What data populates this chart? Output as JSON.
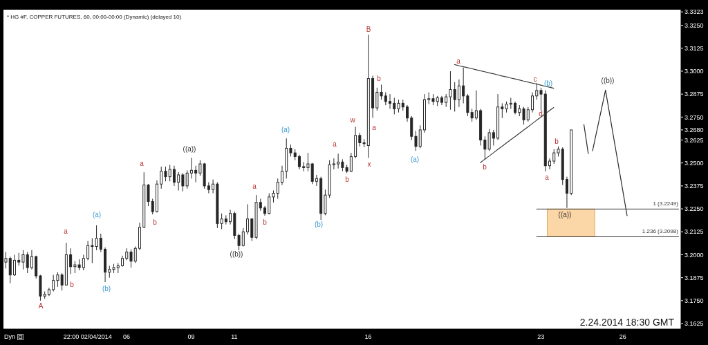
{
  "chart_data": {
    "type": "candlestick",
    "title": "* HG #F, COPPER FUTURES, 60, 00:00-00:00 (Dynamic) (delayed 10)",
    "color": "#262626",
    "categories": [
      null,
      null,
      null,
      null,
      null,
      null,
      null,
      null,
      null,
      null,
      null,
      null,
      null,
      null,
      null,
      null,
      null,
      null,
      null,
      "22:00 02/04/2014",
      null,
      null,
      null,
      null,
      null,
      null,
      null,
      null,
      "06",
      null,
      null,
      null,
      null,
      null,
      null,
      null,
      null,
      null,
      null,
      null,
      null,
      null,
      null,
      "09",
      null,
      null,
      null,
      null,
      null,
      null,
      null,
      null,
      null,
      "11",
      null,
      null,
      null,
      null,
      null,
      null,
      null,
      null,
      null,
      null,
      null,
      null,
      null,
      null,
      null,
      null,
      null,
      null,
      null,
      null,
      null,
      null,
      null,
      null,
      null,
      null,
      null,
      null,
      null,
      null,
      "16",
      null,
      null,
      null,
      null,
      null,
      null,
      null,
      null,
      null,
      null,
      null,
      null,
      null,
      null,
      null,
      null,
      null,
      null,
      null,
      null,
      null,
      null,
      null,
      null,
      null,
      null,
      null,
      null,
      null,
      null,
      null,
      null,
      null,
      null,
      null,
      null,
      null,
      null,
      null,
      "23",
      null,
      null,
      null,
      null,
      null,
      null,
      null,
      null,
      null,
      null,
      null,
      null,
      null,
      null,
      null,
      null,
      null,
      null,
      "26",
      null,
      null,
      null,
      null,
      null,
      null,
      null,
      null,
      null,
      null,
      null,
      null,
      null
    ],
    "ohlc": [
      [
        3.196,
        3.2015,
        3.1925,
        3.198
      ],
      [
        3.198,
        3.199,
        3.1845,
        3.189
      ],
      [
        3.189,
        3.2,
        3.1885,
        3.197
      ],
      [
        3.197,
        3.201,
        3.194,
        3.196
      ],
      [
        3.196,
        3.2025,
        3.192,
        3.2
      ],
      [
        3.2,
        3.2015,
        3.19,
        3.193
      ],
      [
        3.193,
        3.2025,
        3.192,
        3.199
      ],
      [
        3.199,
        3.1995,
        3.187,
        3.1885
      ],
      [
        3.1885,
        3.189,
        3.175,
        3.1775
      ],
      [
        3.1775,
        3.18,
        3.176,
        3.1785
      ],
      [
        3.1785,
        3.182,
        3.1775,
        3.181
      ],
      [
        3.181,
        3.189,
        3.18,
        3.186
      ],
      [
        3.186,
        3.1905,
        3.1825,
        3.189
      ],
      [
        3.189,
        3.19,
        3.1805,
        3.1835
      ],
      [
        3.1835,
        3.2065,
        3.1835,
        3.2
      ],
      [
        3.2,
        3.2035,
        3.1895,
        3.1935
      ],
      [
        3.1935,
        3.1965,
        3.19,
        3.1945
      ],
      [
        3.1945,
        3.1975,
        3.1915,
        3.193
      ],
      [
        3.193,
        3.2,
        3.1915,
        3.198
      ],
      [
        3.198,
        3.2075,
        3.197,
        3.205
      ],
      [
        3.205,
        3.209,
        3.1955,
        3.2045
      ],
      [
        3.2045,
        3.216,
        3.2025,
        3.209
      ],
      [
        3.209,
        3.2115,
        3.2015,
        3.203
      ],
      [
        3.203,
        3.204,
        3.1851,
        3.1905
      ],
      [
        3.1905,
        3.194,
        3.1875,
        3.192
      ],
      [
        3.192,
        3.195,
        3.19,
        3.193
      ],
      [
        3.193,
        3.1955,
        3.19,
        3.194
      ],
      [
        3.194,
        3.1995,
        3.1935,
        3.198
      ],
      [
        3.198,
        3.2035,
        3.197,
        3.2015
      ],
      [
        3.2015,
        3.203,
        3.193,
        3.1965
      ],
      [
        3.1965,
        3.2045,
        3.1955,
        3.2035
      ],
      [
        3.2035,
        3.2175,
        3.2025,
        3.215
      ],
      [
        3.215,
        3.2449,
        3.2145,
        3.238
      ],
      [
        3.238,
        3.2385,
        3.2265,
        3.229
      ],
      [
        3.229,
        3.2305,
        3.222,
        3.2235
      ],
      [
        3.2235,
        3.2405,
        3.223,
        3.2385
      ],
      [
        3.2385,
        3.248,
        3.236,
        3.2455
      ],
      [
        3.2455,
        3.248,
        3.24,
        3.2425
      ],
      [
        3.2425,
        3.249,
        3.24,
        3.2465
      ],
      [
        3.2465,
        3.2485,
        3.2375,
        3.2395
      ],
      [
        3.2395,
        3.245,
        3.235,
        3.2435
      ],
      [
        3.2435,
        3.2445,
        3.2345,
        3.2375
      ],
      [
        3.2375,
        3.246,
        3.236,
        3.2445
      ],
      [
        3.2445,
        3.2528,
        3.2415,
        3.246
      ],
      [
        3.246,
        3.2485,
        3.2395,
        3.2445
      ],
      [
        3.2445,
        3.2515,
        3.243,
        3.2495
      ],
      [
        3.2495,
        3.25,
        3.236,
        3.2375
      ],
      [
        3.2375,
        3.2395,
        3.2335,
        3.2355
      ],
      [
        3.2355,
        3.241,
        3.2335,
        3.2385
      ],
      [
        3.2385,
        3.2395,
        3.2145,
        3.217
      ],
      [
        3.217,
        3.2225,
        3.214,
        3.2195
      ],
      [
        3.2195,
        3.2215,
        3.2165,
        3.218
      ],
      [
        3.218,
        3.2245,
        3.2165,
        3.2225
      ],
      [
        3.2225,
        3.2235,
        3.2085,
        3.2105
      ],
      [
        3.2105,
        3.2115,
        3.2024,
        3.205
      ],
      [
        3.205,
        3.2145,
        3.2045,
        3.2125
      ],
      [
        3.2125,
        3.2275,
        3.211,
        3.2195
      ],
      [
        3.2195,
        3.22,
        3.2075,
        3.2095
      ],
      [
        3.2095,
        3.2325,
        3.2085,
        3.2285
      ],
      [
        3.2285,
        3.2305,
        3.224,
        3.2255
      ],
      [
        3.2255,
        3.2265,
        3.2213,
        3.2225
      ],
      [
        3.2225,
        3.2335,
        3.222,
        3.2315
      ],
      [
        3.2315,
        3.235,
        3.2285,
        3.2335
      ],
      [
        3.2335,
        3.2415,
        3.2305,
        3.2395
      ],
      [
        3.2395,
        3.2485,
        3.238,
        3.2455
      ],
      [
        3.2455,
        3.2634,
        3.2415,
        3.258
      ],
      [
        3.258,
        3.26,
        3.2535,
        3.2555
      ],
      [
        3.2555,
        3.2575,
        3.2515,
        3.2535
      ],
      [
        3.2535,
        3.2545,
        3.2465,
        3.248
      ],
      [
        3.248,
        3.2505,
        3.2455,
        3.2475
      ],
      [
        3.2475,
        3.2555,
        3.2455,
        3.2495
      ],
      [
        3.2495,
        3.25,
        3.2385,
        3.24
      ],
      [
        3.24,
        3.2435,
        3.2375,
        3.2415
      ],
      [
        3.2415,
        3.2425,
        3.219,
        3.2225
      ],
      [
        3.2225,
        3.2355,
        3.2215,
        3.2325
      ],
      [
        3.2325,
        3.2515,
        3.231,
        3.249
      ],
      [
        3.249,
        3.2525,
        3.2465,
        3.2495
      ],
      [
        3.2495,
        3.255,
        3.247,
        3.2505
      ],
      [
        3.2505,
        3.252,
        3.2455,
        3.2475
      ],
      [
        3.2475,
        3.249,
        3.2445,
        3.2455
      ],
      [
        3.2455,
        3.2555,
        3.245,
        3.2535
      ],
      [
        3.2535,
        3.2698,
        3.2525,
        3.265
      ],
      [
        3.265,
        3.2665,
        3.259,
        3.261
      ],
      [
        3.261,
        3.263,
        3.2585,
        3.2605
      ],
      [
        3.2595,
        3.3198,
        3.2528,
        3.296
      ],
      [
        3.296,
        3.2975,
        3.2746,
        3.28
      ],
      [
        3.28,
        3.291,
        3.2785,
        3.2885
      ],
      [
        3.2885,
        3.2927,
        3.2845,
        3.2865
      ],
      [
        3.2865,
        3.2885,
        3.2815,
        3.2835
      ],
      [
        3.2835,
        3.2875,
        3.2795,
        3.2825
      ],
      [
        3.2825,
        3.2855,
        3.2765,
        3.2795
      ],
      [
        3.2795,
        3.2845,
        3.2775,
        3.2825
      ],
      [
        3.2825,
        3.2845,
        3.2785,
        3.2805
      ],
      [
        3.2805,
        3.2815,
        3.2725,
        3.2745
      ],
      [
        3.2745,
        3.2755,
        3.2625,
        3.2645
      ],
      [
        3.2645,
        3.2675,
        3.2566,
        3.259
      ],
      [
        3.259,
        3.2705,
        3.258,
        3.268
      ],
      [
        3.268,
        3.2875,
        3.2665,
        3.2845
      ],
      [
        3.2845,
        3.2885,
        3.282,
        3.285
      ],
      [
        3.285,
        3.2875,
        3.2815,
        3.2835
      ],
      [
        3.2835,
        3.2865,
        3.281,
        3.2855
      ],
      [
        3.2855,
        3.2865,
        3.2815,
        3.283
      ],
      [
        3.283,
        3.2875,
        3.2805,
        3.286
      ],
      [
        3.286,
        3.3,
        3.279,
        3.29
      ],
      [
        3.29,
        3.294,
        3.278,
        3.2845
      ],
      [
        3.2845,
        3.2955,
        3.2805,
        3.292
      ],
      [
        3.292,
        3.302,
        3.2825,
        3.2865
      ],
      [
        3.2865,
        3.2875,
        3.2755,
        3.2775
      ],
      [
        3.2775,
        3.2795,
        3.2725,
        3.2745
      ],
      [
        3.2745,
        3.2895,
        3.2735,
        3.2785
      ],
      [
        3.2785,
        3.2795,
        3.2595,
        3.2625
      ],
      [
        3.2625,
        3.2645,
        3.252,
        3.2575
      ],
      [
        3.2575,
        3.2685,
        3.2565,
        3.2665
      ],
      [
        3.2665,
        3.268,
        3.2595,
        3.2635
      ],
      [
        3.2635,
        3.2875,
        3.2625,
        3.2805
      ],
      [
        3.2805,
        3.2825,
        3.2745,
        3.2795
      ],
      [
        3.2795,
        3.2835,
        3.2775,
        3.282
      ],
      [
        3.282,
        3.2855,
        3.2795,
        3.2825
      ],
      [
        3.2825,
        3.2835,
        3.2765,
        3.2775
      ],
      [
        3.2775,
        3.2815,
        3.2755,
        3.2795
      ],
      [
        3.2795,
        3.2805,
        3.2709,
        3.2735
      ],
      [
        3.2735,
        3.2805,
        3.2725,
        3.279
      ],
      [
        3.279,
        3.2885,
        3.2775,
        3.2865
      ],
      [
        3.2865,
        3.2935,
        3.2845,
        3.2895
      ],
      [
        3.2895,
        3.291,
        3.2784,
        3.2875
      ],
      [
        3.2875,
        3.2895,
        3.2454,
        3.2485
      ],
      [
        3.2485,
        3.2525,
        3.2465,
        3.251
      ],
      [
        3.251,
        3.2575,
        3.2495,
        3.2555
      ],
      [
        3.2555,
        3.259,
        3.2535,
        3.2575
      ],
      [
        3.2575,
        3.2585,
        3.238,
        3.241
      ],
      [
        3.241,
        3.2425,
        3.2255,
        3.2335
      ],
      [
        3.2335,
        3.268,
        3.2325,
        3.268
      ],
      null,
      null,
      null,
      null,
      null,
      null,
      null,
      null,
      null,
      null,
      null,
      null,
      null,
      null,
      null,
      null,
      null,
      null,
      null,
      null,
      null,
      null,
      null,
      null,
      null
    ],
    "series": [
      {
        "type": "line",
        "color": "#3a3a3a",
        "values": [
          null,
          null,
          null,
          null,
          null,
          null,
          null,
          null,
          null,
          null,
          null,
          null,
          null,
          null,
          null,
          null,
          null,
          null,
          null,
          null,
          null,
          null,
          null,
          null,
          null,
          null,
          null,
          null,
          null,
          null,
          null,
          null,
          null,
          null,
          null,
          null,
          null,
          null,
          null,
          null,
          null,
          null,
          null,
          null,
          null,
          null,
          null,
          null,
          null,
          null,
          null,
          null,
          null,
          null,
          null,
          null,
          null,
          null,
          null,
          null,
          null,
          null,
          null,
          null,
          null,
          null,
          null,
          null,
          null,
          null,
          null,
          null,
          null,
          null,
          null,
          null,
          null,
          null,
          null,
          null,
          null,
          null,
          null,
          null,
          null,
          null,
          null,
          null,
          null,
          null,
          null,
          null,
          null,
          null,
          null,
          null,
          null,
          null,
          null,
          null,
          null,
          null,
          null,
          null,
          3.3036,
          3.303,
          3.3025,
          3.3019,
          3.3014,
          3.3008,
          3.3002,
          3.2997,
          3.2991,
          3.2986,
          3.298,
          3.2974,
          3.2969,
          3.2963,
          3.2958,
          3.2952,
          3.2946,
          3.2941,
          3.2935,
          3.293,
          3.2924,
          3.2918,
          3.2913,
          3.2907,
          null,
          null,
          null,
          null,
          null,
          null,
          null,
          null,
          null,
          null,
          null,
          null,
          null,
          null,
          null,
          null,
          null,
          null,
          null,
          null,
          null,
          null,
          null,
          null,
          null,
          null,
          null,
          null,
          null
        ]
      },
      {
        "type": "line",
        "color": "#3a3a3a",
        "values": [
          null,
          null,
          null,
          null,
          null,
          null,
          null,
          null,
          null,
          null,
          null,
          null,
          null,
          null,
          null,
          null,
          null,
          null,
          null,
          null,
          null,
          null,
          null,
          null,
          null,
          null,
          null,
          null,
          null,
          null,
          null,
          null,
          null,
          null,
          null,
          null,
          null,
          null,
          null,
          null,
          null,
          null,
          null,
          null,
          null,
          null,
          null,
          null,
          null,
          null,
          null,
          null,
          null,
          null,
          null,
          null,
          null,
          null,
          null,
          null,
          null,
          null,
          null,
          null,
          null,
          null,
          null,
          null,
          null,
          null,
          null,
          null,
          null,
          null,
          null,
          null,
          null,
          null,
          null,
          null,
          null,
          null,
          null,
          null,
          null,
          null,
          null,
          null,
          null,
          null,
          null,
          null,
          null,
          null,
          null,
          null,
          null,
          null,
          null,
          null,
          null,
          null,
          null,
          null,
          null,
          null,
          null,
          null,
          null,
          null,
          3.2502,
          3.252,
          3.2537,
          3.2555,
          3.2573,
          3.259,
          3.2608,
          3.2626,
          3.2643,
          3.2661,
          3.2679,
          3.2696,
          3.2714,
          3.2732,
          3.2749,
          3.2767,
          3.2785,
          3.2802,
          null,
          null,
          null,
          null,
          null,
          null,
          null,
          null,
          null,
          null,
          null,
          null,
          null,
          null,
          null,
          null,
          null,
          null,
          null,
          null,
          null,
          null,
          null,
          null,
          null,
          null,
          null,
          null,
          null
        ]
      },
      {
        "type": "line",
        "color": "#2a2a2a",
        "values": [
          null,
          null,
          null,
          null,
          null,
          null,
          null,
          null,
          null,
          null,
          null,
          null,
          null,
          null,
          null,
          null,
          null,
          null,
          null,
          null,
          null,
          null,
          null,
          null,
          null,
          null,
          null,
          null,
          null,
          null,
          null,
          null,
          null,
          null,
          null,
          null,
          null,
          null,
          null,
          null,
          null,
          null,
          null,
          null,
          null,
          null,
          null,
          null,
          null,
          null,
          null,
          null,
          null,
          null,
          null,
          null,
          null,
          null,
          null,
          null,
          null,
          null,
          null,
          null,
          null,
          null,
          null,
          null,
          null,
          null,
          null,
          null,
          null,
          null,
          null,
          null,
          null,
          null,
          null,
          null,
          null,
          null,
          null,
          null,
          null,
          null,
          null,
          null,
          null,
          null,
          null,
          null,
          null,
          null,
          null,
          null,
          null,
          null,
          null,
          null,
          null,
          null,
          null,
          null,
          null,
          null,
          null,
          null,
          null,
          null,
          null,
          null,
          null,
          null,
          null,
          null,
          null,
          null,
          null,
          null,
          null,
          null,
          null,
          null,
          null,
          null,
          null,
          null,
          null,
          null,
          null,
          null,
          null,
          null,
          3.2709,
          3.2551,
          null,
          null,
          null,
          null,
          null,
          null,
          null,
          null,
          null,
          null,
          null,
          null,
          null,
          null,
          null,
          null,
          null,
          null,
          null,
          null,
          null
        ]
      },
      {
        "type": "line",
        "color": "#2a2a2a",
        "values": [
          null,
          null,
          null,
          null,
          null,
          null,
          null,
          null,
          null,
          null,
          null,
          null,
          null,
          null,
          null,
          null,
          null,
          null,
          null,
          null,
          null,
          null,
          null,
          null,
          null,
          null,
          null,
          null,
          null,
          null,
          null,
          null,
          null,
          null,
          null,
          null,
          null,
          null,
          null,
          null,
          null,
          null,
          null,
          null,
          null,
          null,
          null,
          null,
          null,
          null,
          null,
          null,
          null,
          null,
          null,
          null,
          null,
          null,
          null,
          null,
          null,
          null,
          null,
          null,
          null,
          null,
          null,
          null,
          null,
          null,
          null,
          null,
          null,
          null,
          null,
          null,
          null,
          null,
          null,
          null,
          null,
          null,
          null,
          null,
          null,
          null,
          null,
          null,
          null,
          null,
          null,
          null,
          null,
          null,
          null,
          null,
          null,
          null,
          null,
          null,
          null,
          null,
          null,
          null,
          null,
          null,
          null,
          null,
          null,
          null,
          null,
          null,
          null,
          null,
          null,
          null,
          null,
          null,
          null,
          null,
          null,
          null,
          null,
          null,
          null,
          null,
          null,
          null,
          null,
          null,
          null,
          null,
          null,
          null,
          null,
          null,
          3.2566,
          3.2676,
          3.2787,
          3.2897,
          3.276,
          3.2623,
          3.2487,
          3.235,
          3.2213,
          null,
          null,
          null,
          null,
          null,
          null,
          null,
          null,
          null,
          null,
          null,
          null
        ]
      }
    ],
    "ylim": [
      3.1595,
      3.3335
    ],
    "yticks": [
      {
        "value": 3.1625,
        "label": "3.1625"
      },
      {
        "value": 3.175,
        "label": "3.1750"
      },
      {
        "value": 3.1875,
        "label": "3.1875"
      },
      {
        "value": 3.2,
        "label": "3.2000"
      },
      {
        "value": 3.2125,
        "label": "3.2125"
      },
      {
        "value": 3.225,
        "label": "3.2250"
      },
      {
        "value": 3.2375,
        "label": "3.2375"
      },
      {
        "value": 3.25,
        "label": "3.2500"
      },
      {
        "value": 3.2625,
        "label": "3.2625"
      },
      {
        "value": 3.268,
        "label": "3.2680"
      },
      {
        "value": 3.275,
        "label": "3.2750"
      },
      {
        "value": 3.2875,
        "label": "3.2875"
      },
      {
        "value": 3.3,
        "label": "3.3000"
      },
      {
        "value": 3.3125,
        "label": "3.3125"
      },
      {
        "value": 3.325,
        "label": "3.3250"
      },
      {
        "value": 3.3323,
        "label": "3.3323"
      }
    ],
    "ref_lines": [
      {
        "axis": "y",
        "value": 3.2249,
        "label": "1 (3.2249)",
        "color": "#333333"
      },
      {
        "axis": "y",
        "value": 3.2098,
        "label": "1.236 (3.2098)",
        "color": "#333333"
      }
    ],
    "bands": [
      {
        "axis": "y",
        "from": 3.2098,
        "to": 3.2249,
        "color": "#fbd6a6"
      }
    ],
    "annotations": [
      "2.24.2014 18:30 GMT",
      "Dyn",
      "A",
      "a",
      "b",
      "(a)",
      "(b)",
      "a",
      "b",
      "((a))",
      "((b))",
      "a",
      "b",
      "(a)",
      "(b)",
      "a",
      "b",
      "w",
      "x",
      "B",
      "a",
      "b",
      "(a)",
      "a",
      "b",
      "c",
      "d",
      "(b)",
      "a",
      "b",
      "((a))",
      "((b))"
    ]
  }
}
